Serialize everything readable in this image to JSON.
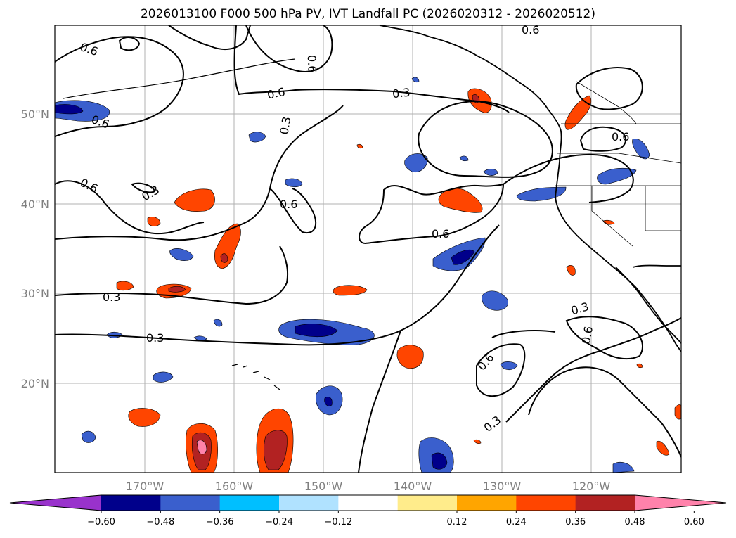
{
  "title": "2026013100 F000 500 hPa PV, IVT Landfall PC (2026020312 - 2026020512)",
  "map": {
    "lon_range": [
      -180,
      -110
    ],
    "lat_range": [
      10,
      60
    ],
    "lon_ticks": [
      "170°W",
      "160°W",
      "150°W",
      "140°W",
      "130°W",
      "120°W"
    ],
    "lat_ticks": [
      "50°N",
      "40°N",
      "30°N",
      "20°N"
    ],
    "contour_labels": [
      "0.6",
      "0.6",
      "0.6",
      "0.6",
      "0.6",
      "0.3",
      "0.3",
      "0.6",
      "0.3",
      "0.6",
      "0.3",
      "0.3",
      "0.6",
      "0.6",
      "0.3",
      "0.6",
      "0.3",
      "0.6"
    ]
  },
  "colorbar": {
    "ticks": [
      "−0.60",
      "−0.48",
      "−0.36",
      "−0.24",
      "−0.12",
      "0.12",
      "0.24",
      "0.36",
      "0.48",
      "0.60"
    ],
    "colors": [
      "#9932cc",
      "#00008b",
      "#3a5fcd",
      "#00bfff",
      "#b0e2ff",
      "#ffffff",
      "#ffec8b",
      "#ffa500",
      "#ff4500",
      "#b22222",
      "#ff82ab"
    ]
  }
}
